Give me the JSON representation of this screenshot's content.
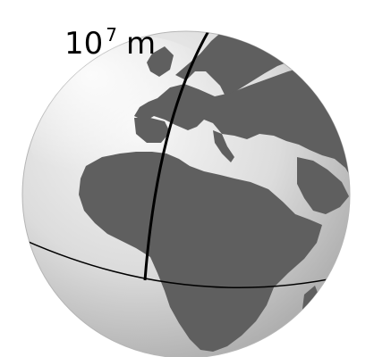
{
  "label": {
    "base": "10",
    "exponent": "7",
    "unit": "m"
  },
  "colors": {
    "land": "#5f5f5f",
    "ocean_light": "#f6f6f6",
    "ocean_mid": "#dcdcdc",
    "ocean_dark": "#a9a9a9",
    "lines": "#000000"
  }
}
